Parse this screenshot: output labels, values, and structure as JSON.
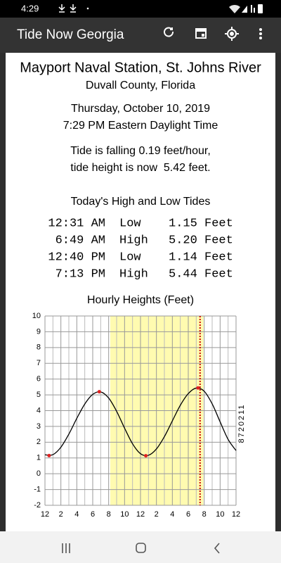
{
  "status_bar": {
    "time": "4:29"
  },
  "app_bar": {
    "title": "Tide Now Georgia"
  },
  "station": {
    "name": "Mayport Naval Station, St. Johns River",
    "county": "Duvall County, Florida",
    "date": "Thursday, October 10, 2019",
    "time": "7:29 PM Eastern Daylight Time",
    "trend": "Tide is falling 0.19 feet/hour,",
    "height": "tide height is now  5.42 feet."
  },
  "tides": {
    "title": "Today's High and Low Tides",
    "rows": [
      [
        "12:31 AM",
        "Low",
        "1.15 Feet"
      ],
      [
        "6:49 AM",
        "High",
        "5.20 Feet"
      ],
      [
        "12:40 PM",
        "Low",
        "1.14 Feet"
      ],
      [
        "7:13 PM",
        "High",
        "5.44 Feet"
      ]
    ]
  },
  "chart_data": {
    "type": "line",
    "title": "Hourly Heights (Feet)",
    "station_id": "8720211",
    "curve": {
      "color": "#000000",
      "x": [
        0,
        1,
        2,
        3,
        4,
        5,
        6,
        7,
        8,
        9,
        10,
        11,
        12,
        13,
        14,
        15,
        16,
        17,
        18,
        19,
        20,
        21,
        22,
        23,
        24
      ],
      "values": [
        1.2,
        1.21,
        1.68,
        2.51,
        3.51,
        4.42,
        5.03,
        5.19,
        4.8,
        3.96,
        2.89,
        1.9,
        1.27,
        1.17,
        1.57,
        2.35,
        3.35,
        4.34,
        5.08,
        5.43,
        5.23,
        4.43,
        3.29,
        2.18,
        1.47
      ]
    },
    "extremes": {
      "color": "#e02020",
      "x": [
        0.52,
        6.82,
        12.67,
        19.22
      ],
      "values": [
        1.15,
        5.2,
        1.14,
        5.44
      ]
    },
    "daylight": [
      8.2,
      19.9
    ],
    "daylight_color": "#fffbb0",
    "now": 19.48,
    "now_color": "#cc0000",
    "xlim": [
      0,
      24
    ],
    "ylim": [
      -2,
      10
    ],
    "xticks": [
      {
        "value": 0,
        "label": "12"
      },
      2,
      4,
      6,
      8,
      10,
      {
        "value": 12,
        "label": "12"
      },
      {
        "value": 14,
        "label": "2"
      },
      {
        "value": 16,
        "label": "4"
      },
      {
        "value": 18,
        "label": "6"
      },
      {
        "value": 20,
        "label": "8"
      },
      {
        "value": 22,
        "label": "10"
      },
      {
        "value": 24,
        "label": "12"
      }
    ],
    "minor_xticks": [
      1,
      3,
      5,
      7,
      9,
      11,
      13,
      15,
      17,
      19,
      21,
      23
    ],
    "yticks": [
      -2,
      -1,
      0,
      1,
      2,
      3,
      4,
      5,
      6,
      7,
      8,
      9,
      10
    ],
    "grid": true
  }
}
